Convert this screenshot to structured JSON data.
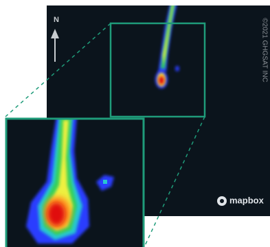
{
  "north_label": "N",
  "copyright": "©2021 GHGSAT INC",
  "logo_text": "mapbox"
}
